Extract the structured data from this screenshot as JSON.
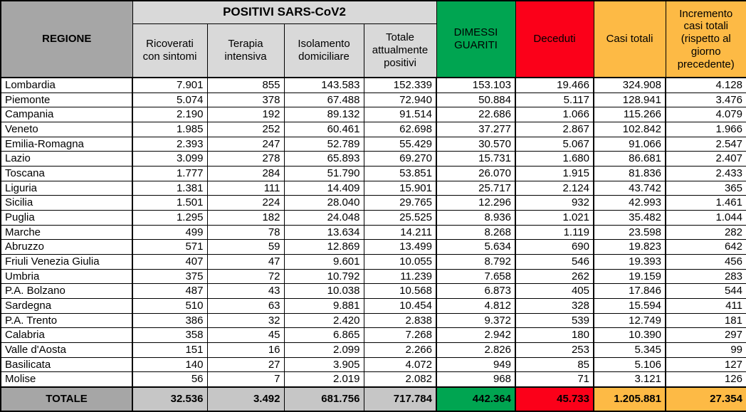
{
  "colors": {
    "green": "#00A551",
    "red": "#FB0019",
    "orange": "#FDBA45",
    "header_gray": "#A6A6A6",
    "subheader_gray": "#D9D9D9",
    "total_gray": "#C6C6C6"
  },
  "chart_data": {
    "type": "table",
    "group_header": "POSITIVI SARS-CoV2",
    "columns": [
      "REGIONE",
      "Ricoverati con sintomi",
      "Terapia intensiva",
      "Isolamento domiciliare",
      "Totale attualmente positivi",
      "DIMESSI GUARITI",
      "Deceduti",
      "Casi totali",
      "Incremento casi totali (rispetto al giorno precedente)"
    ],
    "rows": [
      [
        "Lombardia",
        "7.901",
        "855",
        "143.583",
        "152.339",
        "153.103",
        "19.466",
        "324.908",
        "4.128"
      ],
      [
        "Piemonte",
        "5.074",
        "378",
        "67.488",
        "72.940",
        "50.884",
        "5.117",
        "128.941",
        "3.476"
      ],
      [
        "Campania",
        "2.190",
        "192",
        "89.132",
        "91.514",
        "22.686",
        "1.066",
        "115.266",
        "4.079"
      ],
      [
        "Veneto",
        "1.985",
        "252",
        "60.461",
        "62.698",
        "37.277",
        "2.867",
        "102.842",
        "1.966"
      ],
      [
        "Emilia-Romagna",
        "2.393",
        "247",
        "52.789",
        "55.429",
        "30.570",
        "5.067",
        "91.066",
        "2.547"
      ],
      [
        "Lazio",
        "3.099",
        "278",
        "65.893",
        "69.270",
        "15.731",
        "1.680",
        "86.681",
        "2.407"
      ],
      [
        "Toscana",
        "1.777",
        "284",
        "51.790",
        "53.851",
        "26.070",
        "1.915",
        "81.836",
        "2.433"
      ],
      [
        "Liguria",
        "1.381",
        "111",
        "14.409",
        "15.901",
        "25.717",
        "2.124",
        "43.742",
        "365"
      ],
      [
        "Sicilia",
        "1.501",
        "224",
        "28.040",
        "29.765",
        "12.296",
        "932",
        "42.993",
        "1.461"
      ],
      [
        "Puglia",
        "1.295",
        "182",
        "24.048",
        "25.525",
        "8.936",
        "1.021",
        "35.482",
        "1.044"
      ],
      [
        "Marche",
        "499",
        "78",
        "13.634",
        "14.211",
        "8.268",
        "1.119",
        "23.598",
        "282"
      ],
      [
        "Abruzzo",
        "571",
        "59",
        "12.869",
        "13.499",
        "5.634",
        "690",
        "19.823",
        "642"
      ],
      [
        "Friuli Venezia Giulia",
        "407",
        "47",
        "9.601",
        "10.055",
        "8.792",
        "546",
        "19.393",
        "456"
      ],
      [
        "Umbria",
        "375",
        "72",
        "10.792",
        "11.239",
        "7.658",
        "262",
        "19.159",
        "283"
      ],
      [
        "P.A. Bolzano",
        "487",
        "43",
        "10.038",
        "10.568",
        "6.873",
        "405",
        "17.846",
        "544"
      ],
      [
        "Sardegna",
        "510",
        "63",
        "9.881",
        "10.454",
        "4.812",
        "328",
        "15.594",
        "411"
      ],
      [
        "P.A. Trento",
        "386",
        "32",
        "2.420",
        "2.838",
        "9.372",
        "539",
        "12.749",
        "181"
      ],
      [
        "Calabria",
        "358",
        "45",
        "6.865",
        "7.268",
        "2.942",
        "180",
        "10.390",
        "297"
      ],
      [
        "Valle d'Aosta",
        "151",
        "16",
        "2.099",
        "2.266",
        "2.826",
        "253",
        "5.345",
        "99"
      ],
      [
        "Basilicata",
        "140",
        "27",
        "3.905",
        "4.072",
        "949",
        "85",
        "5.106",
        "127"
      ],
      [
        "Molise",
        "56",
        "7",
        "2.019",
        "2.082",
        "968",
        "71",
        "3.121",
        "126"
      ]
    ],
    "total_row": [
      "TOTALE",
      "32.536",
      "3.492",
      "681.756",
      "717.784",
      "442.364",
      "45.733",
      "1.205.881",
      "27.354"
    ]
  }
}
